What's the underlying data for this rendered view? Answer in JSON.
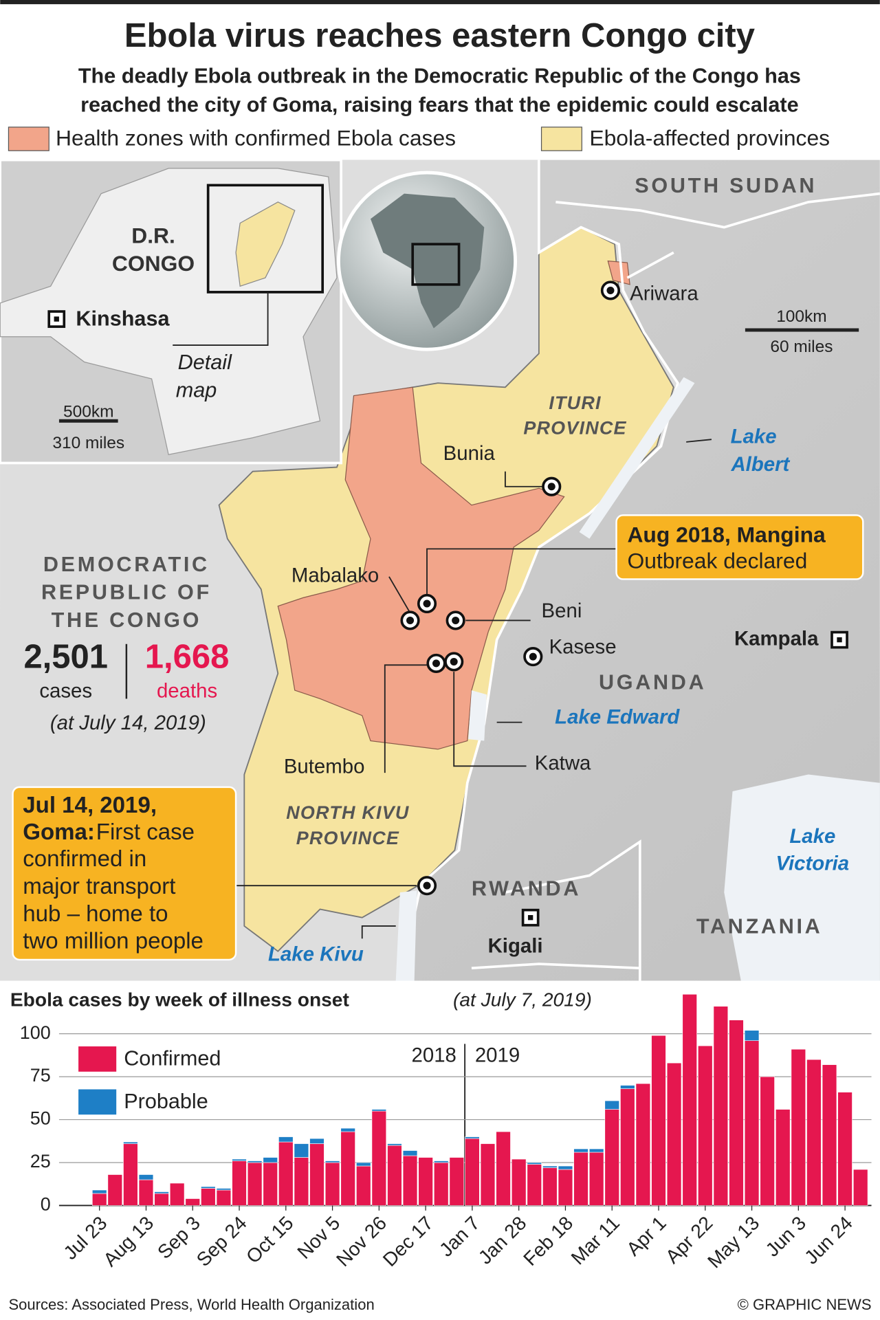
{
  "header": {
    "title": "Ebola virus reaches eastern Congo city",
    "subtitle": [
      "The deadly Ebola outbreak in the Democratic Republic of the Congo has",
      "reached the city of Goma, raising fears that the epidemic could escalate"
    ]
  },
  "legend": [
    "Health zones with confirmed Ebola cases",
    "Ebola-affected provinces"
  ],
  "map": {
    "countries": {
      "south_sudan": "SOUTH SUDAN",
      "uganda": "UGANDA",
      "rwanda": "RWANDA",
      "tanzania": "TANZANIA"
    },
    "provinces": {
      "ituri": [
        "ITURI",
        "PROVINCE"
      ],
      "north_kivu": [
        "NORTH KIVU",
        "PROVINCE"
      ]
    },
    "lakes": {
      "albert": [
        "Lake",
        "Albert"
      ],
      "edward": "Lake Edward",
      "victoria": [
        "Lake",
        "Victoria"
      ],
      "kivu": "Lake Kivu"
    },
    "cities": {
      "ariwara": "Ariwara",
      "bunia": "Bunia",
      "mabalako": "Mabalako",
      "beni": "Beni",
      "kasese": "Kasese",
      "butembo": "Butembo",
      "katwa": "Katwa"
    },
    "capitals": {
      "kampala": "Kampala",
      "kigali": "Kigali"
    },
    "scale": [
      "100km",
      "60 miles"
    ]
  },
  "inset": {
    "country": [
      "D.R.",
      "CONGO"
    ],
    "capital": "Kinshasa",
    "detail": [
      "Detail",
      "map"
    ],
    "scale": [
      "500km",
      "310 miles"
    ]
  },
  "stats": {
    "country": [
      "DEMOCRATIC",
      "REPUBLIC OF",
      "THE CONGO"
    ],
    "cases": "2,501",
    "cases_label": "cases",
    "deaths": "1,668",
    "deaths_label": "deaths",
    "date": "(at July 14, 2019)"
  },
  "callouts": {
    "mangina": [
      "Aug 2018, Mangina",
      "Outbreak declared"
    ],
    "goma": {
      "heading": [
        "Jul 14, 2019,",
        "Goma:"
      ],
      "text": [
        "First case",
        "confirmed in",
        "major transport",
        "hub – home to",
        "two million people"
      ]
    }
  },
  "chart_data": {
    "type": "stacked_bar",
    "title": "Ebola cases by week of illness onset",
    "subtitle": "(at July 7, 2019)",
    "categories": [
      "Jul 23",
      null,
      null,
      "Aug 13",
      null,
      null,
      "Sep 3",
      null,
      null,
      "Sep 24",
      null,
      null,
      "Oct 15",
      null,
      null,
      "Nov 5",
      null,
      null,
      "Nov 26",
      null,
      null,
      "Dec 17",
      null,
      null,
      "Jan 7",
      null,
      null,
      "Jan 28",
      null,
      null,
      "Feb 18",
      null,
      null,
      "Mar 11",
      null,
      null,
      "Apr 1",
      null,
      null,
      "Apr 22",
      null,
      null,
      "May 13",
      null,
      null,
      "Jun 3",
      null,
      null,
      "Jun 24",
      null
    ],
    "series": [
      {
        "name": "Confirmed",
        "color": "#e5174f",
        "values": [
          7,
          18,
          36,
          15,
          7,
          13,
          4,
          10,
          9,
          26,
          25,
          25,
          37,
          28,
          36,
          25,
          43,
          23,
          55,
          35,
          29,
          28,
          25,
          28,
          39,
          36,
          43,
          27,
          24,
          22,
          21,
          31,
          31,
          56,
          68,
          71,
          99,
          83,
          123,
          93,
          116,
          108,
          96,
          75,
          56,
          91,
          85,
          82,
          66,
          21
        ]
      },
      {
        "name": "Probable",
        "color": "#1e7fc6",
        "values": [
          2,
          0,
          1,
          3,
          1,
          0,
          0,
          1,
          1,
          1,
          1,
          3,
          3,
          8,
          3,
          1,
          2,
          2,
          1,
          1,
          3,
          0,
          1,
          0,
          1,
          0,
          0,
          0,
          1,
          1,
          2,
          2,
          2,
          5,
          2,
          0,
          0,
          0,
          0,
          0,
          0,
          0,
          6,
          0,
          0,
          0,
          0,
          0,
          0,
          0
        ]
      }
    ],
    "ylim": [
      0,
      125
    ],
    "yticks": [
      0,
      25,
      50,
      75,
      100
    ],
    "grid": true,
    "years": [
      "2018",
      "2019"
    ]
  },
  "footer": {
    "sources": "Sources: Associated Press, World Health Organization",
    "credit": "© GRAPHIC NEWS"
  }
}
